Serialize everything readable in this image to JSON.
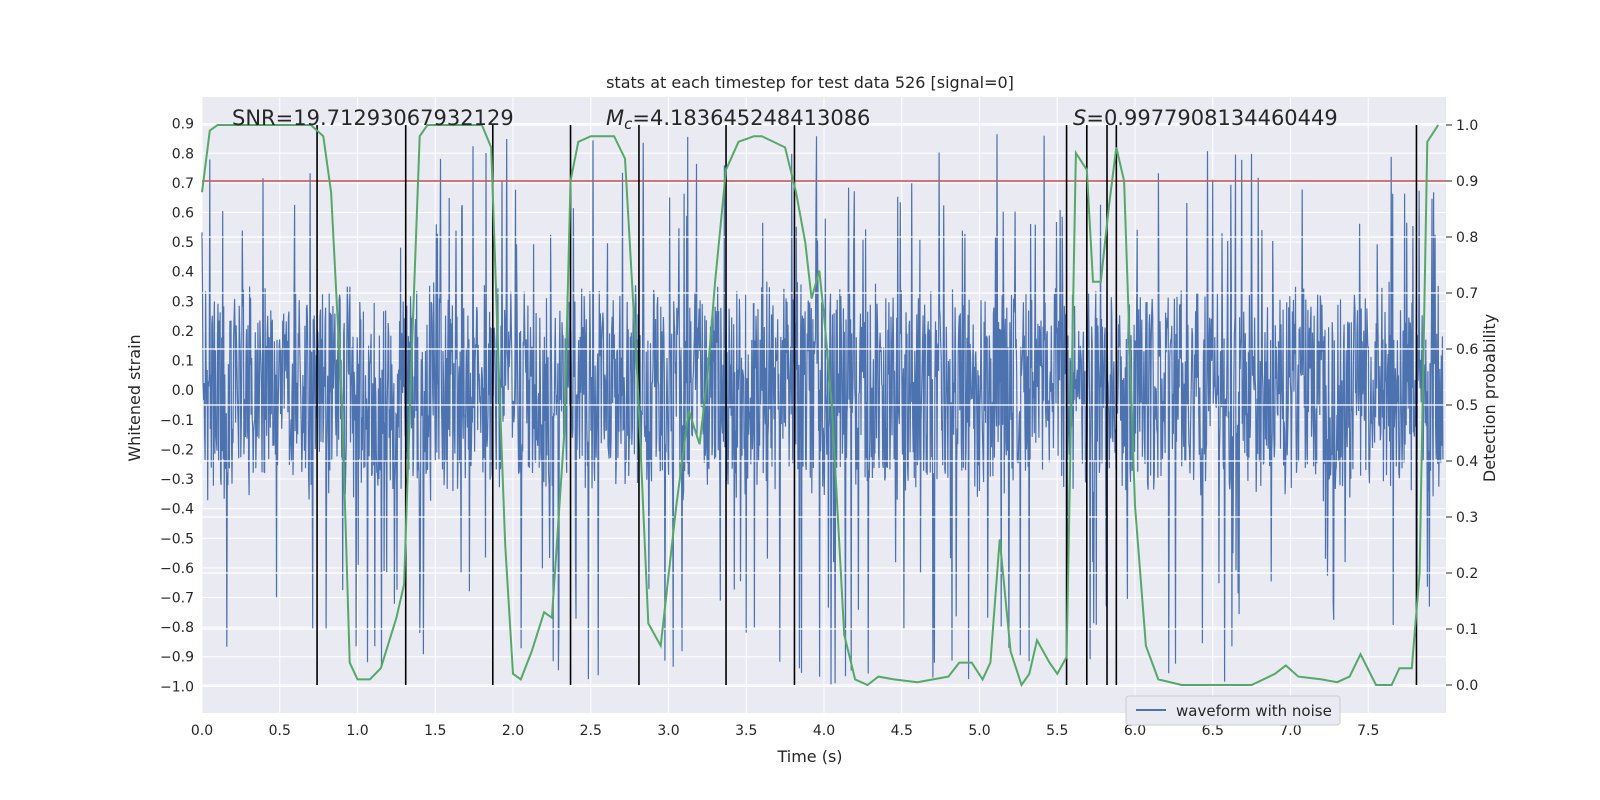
{
  "chart_data": {
    "type": "line",
    "title": "stats at each timestep for test data 526 [signal=0]",
    "xlabel": "Time (s)",
    "ylabel": "Whitened strain",
    "y2label": "Detection probability",
    "xlim": [
      0,
      8
    ],
    "ylim": [
      -1.09,
      0.99
    ],
    "y2lim": [
      -0.05,
      1.05
    ],
    "x_ticks": [
      "0.0",
      "0.5",
      "1.0",
      "1.5",
      "2.0",
      "2.5",
      "3.0",
      "3.5",
      "4.0",
      "4.5",
      "5.0",
      "5.5",
      "6.0",
      "6.5",
      "7.0",
      "7.5"
    ],
    "y_ticks": [
      "0.9",
      "0.8",
      "0.7",
      "0.6",
      "0.5",
      "0.4",
      "0.3",
      "0.2",
      "0.1",
      "0.0",
      "-0.1",
      "-0.2",
      "-0.3",
      "-0.4",
      "-0.5",
      "-0.6",
      "-0.7",
      "-0.8",
      "-0.9",
      "-1.0"
    ],
    "y2_ticks": [
      "1.0",
      "0.9",
      "0.8",
      "0.7",
      "0.6",
      "0.5",
      "0.4",
      "0.3",
      "0.2",
      "0.1",
      "0.0"
    ],
    "annotations": {
      "snr": "SNR=19.71293067932129",
      "mc_symbol": "M",
      "mc_sub": "c",
      "mc_value": "=4.183645248413086",
      "s_symbol": "S",
      "s_value": "=0.9977908134460449"
    },
    "legend": {
      "label": "waveform with noise",
      "location": "lower-right"
    },
    "threshold": {
      "value": 0.9,
      "color": "#c44e52"
    },
    "vertical_markers": [
      0.74,
      1.31,
      1.87,
      2.37,
      2.81,
      3.37,
      3.81,
      5.56,
      5.69,
      5.82,
      5.88,
      7.81
    ],
    "series": [
      {
        "name": "waveform with noise",
        "color": "#4c72b0",
        "envelope": {
          "dense_min": -0.38,
          "dense_max": 0.38,
          "peak_max": 0.87,
          "peak_min": -1.0
        }
      },
      {
        "name": "detection probability",
        "axis": "y2",
        "color": "#55a868",
        "x": [
          0.0,
          0.05,
          0.1,
          0.2,
          0.4,
          0.7,
          0.78,
          0.83,
          0.9,
          0.95,
          1.0,
          1.08,
          1.15,
          1.25,
          1.3,
          1.35,
          1.4,
          1.45,
          1.55,
          1.8,
          1.86,
          1.91,
          1.95,
          2.0,
          2.05,
          2.12,
          2.2,
          2.25,
          2.33,
          2.37,
          2.42,
          2.5,
          2.65,
          2.72,
          2.8,
          2.87,
          2.95,
          3.05,
          3.13,
          3.2,
          3.25,
          3.3,
          3.37,
          3.45,
          3.55,
          3.6,
          3.75,
          3.82,
          3.88,
          3.92,
          3.97,
          4.0,
          4.05,
          4.13,
          4.2,
          4.28,
          4.35,
          4.45,
          4.6,
          4.8,
          4.87,
          4.95,
          5.02,
          5.07,
          5.13,
          5.2,
          5.27,
          5.32,
          5.37,
          5.45,
          5.5,
          5.56,
          5.62,
          5.69,
          5.73,
          5.78,
          5.83,
          5.88,
          5.93,
          6.0,
          6.07,
          6.15,
          6.3,
          6.5,
          6.75,
          6.9,
          6.97,
          7.05,
          7.2,
          7.3,
          7.38,
          7.45,
          7.55,
          7.65,
          7.7,
          7.78,
          7.83,
          7.88,
          7.95
        ],
        "values": [
          0.88,
          0.99,
          1.0,
          1.0,
          1.0,
          1.0,
          0.98,
          0.88,
          0.5,
          0.04,
          0.01,
          0.01,
          0.03,
          0.12,
          0.18,
          0.6,
          0.98,
          1.0,
          1.0,
          1.0,
          0.96,
          0.55,
          0.25,
          0.02,
          0.01,
          0.06,
          0.13,
          0.12,
          0.45,
          0.9,
          0.97,
          0.98,
          0.98,
          0.94,
          0.55,
          0.11,
          0.07,
          0.32,
          0.49,
          0.43,
          0.55,
          0.72,
          0.92,
          0.97,
          0.98,
          0.98,
          0.96,
          0.88,
          0.79,
          0.69,
          0.74,
          0.66,
          0.5,
          0.09,
          0.01,
          0.0,
          0.015,
          0.01,
          0.005,
          0.015,
          0.04,
          0.04,
          0.01,
          0.04,
          0.26,
          0.06,
          0.0,
          0.02,
          0.08,
          0.04,
          0.02,
          0.05,
          0.95,
          0.92,
          0.72,
          0.72,
          0.85,
          0.96,
          0.9,
          0.32,
          0.07,
          0.01,
          0.0,
          0.0,
          0.0,
          0.02,
          0.035,
          0.015,
          0.01,
          0.005,
          0.015,
          0.055,
          0.0,
          0.0,
          0.03,
          0.03,
          0.2,
          0.97,
          1.0
        ]
      }
    ]
  }
}
